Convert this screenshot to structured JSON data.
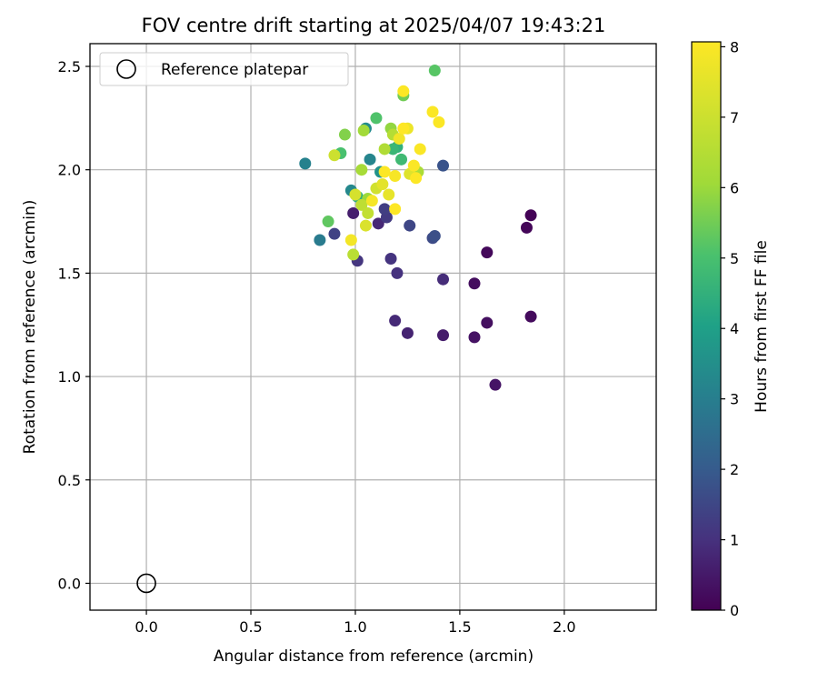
{
  "chart_data": {
    "type": "scatter",
    "title": "FOV centre drift starting at 2025/04/07 19:43:21",
    "xlabel": "Angular distance from reference (arcmin)",
    "ylabel": "Rotation from reference (arcmin)",
    "xlim": [
      -0.27,
      2.44
    ],
    "ylim": [
      -0.13,
      2.61
    ],
    "x_ticks": [
      0.0,
      0.5,
      1.0,
      1.5,
      2.0
    ],
    "x_tick_labels": [
      "0.0",
      "0.5",
      "1.0",
      "1.5",
      "2.0"
    ],
    "y_ticks": [
      0.0,
      0.5,
      1.0,
      1.5,
      2.0,
      2.5
    ],
    "y_tick_labels": [
      "0.0",
      "0.5",
      "1.0",
      "1.5",
      "2.0",
      "2.5"
    ],
    "grid": true,
    "legend": {
      "position": "top-left",
      "entries": [
        "Reference platepar"
      ]
    },
    "reference_point": {
      "x": 0.0,
      "y": 0.0
    },
    "colorbar": {
      "label": "Hours from first FF file",
      "colormap": "viridis",
      "range": [
        0,
        8.07
      ],
      "ticks": [
        0,
        1,
        2,
        3,
        4,
        5,
        6,
        7,
        8
      ],
      "tick_labels": [
        "0",
        "1",
        "2",
        "3",
        "4",
        "5",
        "6",
        "7",
        "8"
      ]
    },
    "points": [
      {
        "x": 1.84,
        "y": 1.78,
        "h": 0.05
      },
      {
        "x": 1.82,
        "y": 1.72,
        "h": 0.1
      },
      {
        "x": 1.63,
        "y": 1.6,
        "h": 0.15
      },
      {
        "x": 1.84,
        "y": 1.29,
        "h": 0.2
      },
      {
        "x": 1.57,
        "y": 1.45,
        "h": 0.25
      },
      {
        "x": 1.63,
        "y": 1.26,
        "h": 0.3
      },
      {
        "x": 1.57,
        "y": 1.19,
        "h": 0.35
      },
      {
        "x": 1.67,
        "y": 0.96,
        "h": 0.4
      },
      {
        "x": 1.42,
        "y": 1.2,
        "h": 0.55
      },
      {
        "x": 1.25,
        "y": 1.21,
        "h": 0.7
      },
      {
        "x": 1.19,
        "y": 1.27,
        "h": 0.85
      },
      {
        "x": 1.42,
        "y": 1.47,
        "h": 0.9
      },
      {
        "x": 1.2,
        "y": 1.5,
        "h": 1.0
      },
      {
        "x": 1.17,
        "y": 1.57,
        "h": 1.05
      },
      {
        "x": 1.01,
        "y": 1.56,
        "h": 1.1
      },
      {
        "x": 0.99,
        "y": 1.79,
        "h": 0.6
      },
      {
        "x": 1.11,
        "y": 1.74,
        "h": 0.8
      },
      {
        "x": 1.15,
        "y": 1.77,
        "h": 1.2
      },
      {
        "x": 1.14,
        "y": 1.81,
        "h": 1.3
      },
      {
        "x": 0.9,
        "y": 1.69,
        "h": 1.4
      },
      {
        "x": 1.26,
        "y": 1.73,
        "h": 1.5
      },
      {
        "x": 1.37,
        "y": 1.67,
        "h": 1.6
      },
      {
        "x": 1.38,
        "y": 1.68,
        "h": 1.7
      },
      {
        "x": 1.42,
        "y": 2.02,
        "h": 1.8
      },
      {
        "x": 0.83,
        "y": 1.66,
        "h": 2.9
      },
      {
        "x": 0.76,
        "y": 2.03,
        "h": 3.1
      },
      {
        "x": 1.07,
        "y": 2.05,
        "h": 3.2
      },
      {
        "x": 0.98,
        "y": 1.9,
        "h": 3.3
      },
      {
        "x": 1.05,
        "y": 2.2,
        "h": 3.4
      },
      {
        "x": 1.12,
        "y": 1.99,
        "h": 3.6
      },
      {
        "x": 1.01,
        "y": 1.87,
        "h": 4.4
      },
      {
        "x": 1.2,
        "y": 2.11,
        "h": 4.5
      },
      {
        "x": 1.18,
        "y": 2.1,
        "h": 4.7
      },
      {
        "x": 1.22,
        "y": 2.05,
        "h": 4.8
      },
      {
        "x": 0.93,
        "y": 2.08,
        "h": 5.0
      },
      {
        "x": 1.1,
        "y": 2.25,
        "h": 5.1
      },
      {
        "x": 1.38,
        "y": 2.48,
        "h": 5.2
      },
      {
        "x": 0.87,
        "y": 1.75,
        "h": 5.3
      },
      {
        "x": 1.23,
        "y": 2.36,
        "h": 5.5
      },
      {
        "x": 0.95,
        "y": 2.17,
        "h": 5.7
      },
      {
        "x": 1.17,
        "y": 2.2,
        "h": 5.9
      },
      {
        "x": 1.06,
        "y": 1.86,
        "h": 6.0
      },
      {
        "x": 1.04,
        "y": 2.19,
        "h": 6.1
      },
      {
        "x": 1.03,
        "y": 2.0,
        "h": 6.2
      },
      {
        "x": 1.3,
        "y": 1.99,
        "h": 6.3
      },
      {
        "x": 1.14,
        "y": 2.1,
        "h": 6.4
      },
      {
        "x": 1.18,
        "y": 2.17,
        "h": 6.5
      },
      {
        "x": 0.99,
        "y": 1.59,
        "h": 6.6
      },
      {
        "x": 1.03,
        "y": 1.83,
        "h": 6.7
      },
      {
        "x": 1.06,
        "y": 1.79,
        "h": 6.8
      },
      {
        "x": 0.9,
        "y": 2.07,
        "h": 7.0
      },
      {
        "x": 1.1,
        "y": 1.91,
        "h": 7.1
      },
      {
        "x": 1.0,
        "y": 1.88,
        "h": 7.2
      },
      {
        "x": 1.05,
        "y": 1.73,
        "h": 7.3
      },
      {
        "x": 1.26,
        "y": 1.98,
        "h": 7.4
      },
      {
        "x": 1.13,
        "y": 1.93,
        "h": 7.5
      },
      {
        "x": 1.16,
        "y": 1.88,
        "h": 7.6
      },
      {
        "x": 1.25,
        "y": 2.2,
        "h": 7.7
      },
      {
        "x": 1.21,
        "y": 2.15,
        "h": 7.8
      },
      {
        "x": 0.98,
        "y": 1.66,
        "h": 7.85
      },
      {
        "x": 1.08,
        "y": 1.85,
        "h": 7.9
      },
      {
        "x": 1.19,
        "y": 1.97,
        "h": 7.95
      },
      {
        "x": 1.28,
        "y": 2.02,
        "h": 8.0
      },
      {
        "x": 1.31,
        "y": 2.1,
        "h": 8.0
      },
      {
        "x": 1.37,
        "y": 2.28,
        "h": 8.02
      },
      {
        "x": 1.4,
        "y": 2.23,
        "h": 8.03
      },
      {
        "x": 1.23,
        "y": 2.38,
        "h": 8.04
      },
      {
        "x": 1.29,
        "y": 1.96,
        "h": 8.05
      },
      {
        "x": 1.14,
        "y": 1.99,
        "h": 8.05
      },
      {
        "x": 1.19,
        "y": 1.81,
        "h": 8.06
      },
      {
        "x": 1.23,
        "y": 2.2,
        "h": 8.06
      }
    ]
  }
}
